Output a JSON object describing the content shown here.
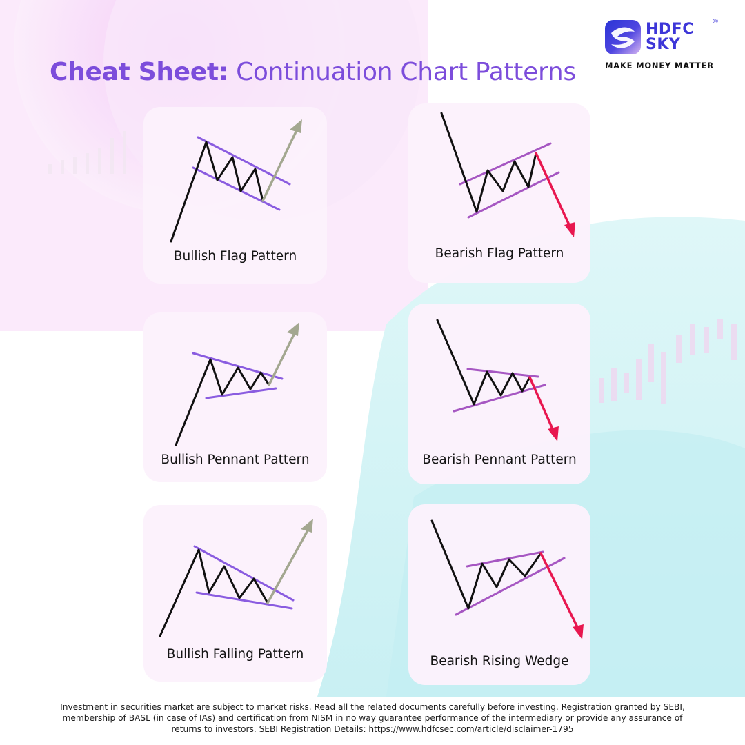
{
  "header": {
    "title_bold": "Cheat Sheet:",
    "title_rest": "Continuation Chart Patterns"
  },
  "logo": {
    "brand_line1": "HDFC",
    "brand_line2": "SKY",
    "registered_mark": "®",
    "tagline": "MAKE MONEY MATTER"
  },
  "colors": {
    "title": "#7c4ddb",
    "brand": "#3d36d8",
    "trend_line": "#111111",
    "bull_channel": "#8a5ce0",
    "bear_channel": "#a657c2",
    "bull_arrow": "#a3a790",
    "bear_arrow": "#e8174f"
  },
  "patterns": [
    {
      "label": "Bullish Flag Pattern",
      "direction": "bullish"
    },
    {
      "label": "Bearish Flag Pattern",
      "direction": "bearish"
    },
    {
      "label": "Bullish Pennant Pattern",
      "direction": "bullish"
    },
    {
      "label": "Bearish Pennant Pattern",
      "direction": "bearish"
    },
    {
      "label": "Bullish Falling Pattern",
      "direction": "bullish"
    },
    {
      "label": "Bearish Rising Wedge",
      "direction": "bearish"
    }
  ],
  "footer": {
    "line1": "Investment in securities market are subject to market risks. Read all the related documents carefully before investing. Registration granted by SEBI,",
    "line2": "membership of BASL (in case of IAs) and certification from NISM in no way guarantee performance of the intermediary or provide any assurance of",
    "line3": "returns to investors.  SEBI Registration Details: https://www.hdfcsec.com/article/disclaimer-1795"
  }
}
